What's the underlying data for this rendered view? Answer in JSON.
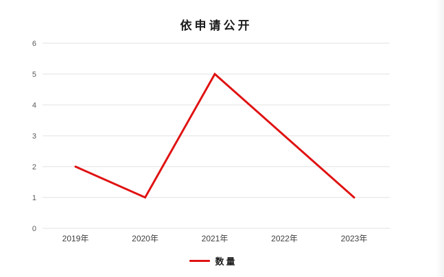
{
  "chart_data": {
    "type": "line",
    "title": "依申请公开",
    "categories": [
      "2019年",
      "2020年",
      "2021年",
      "2022年",
      "2023年"
    ],
    "series": [
      {
        "name": "数量",
        "values": [
          2,
          1,
          5,
          3,
          1
        ],
        "color": "#e01212"
      }
    ],
    "xlabel": "",
    "ylabel": "",
    "ylim": [
      0,
      6
    ],
    "y_ticks": [
      0,
      1,
      2,
      3,
      4,
      5,
      6
    ],
    "grid": true,
    "legend_position": "bottom",
    "line_width": 3
  },
  "colors": {
    "line": "#e01212",
    "gridline": "#e2e2e2",
    "y_tick_label": "#595959",
    "x_tick_label": "#404040",
    "title": "#1a1a1a",
    "background": "#ffffff"
  }
}
